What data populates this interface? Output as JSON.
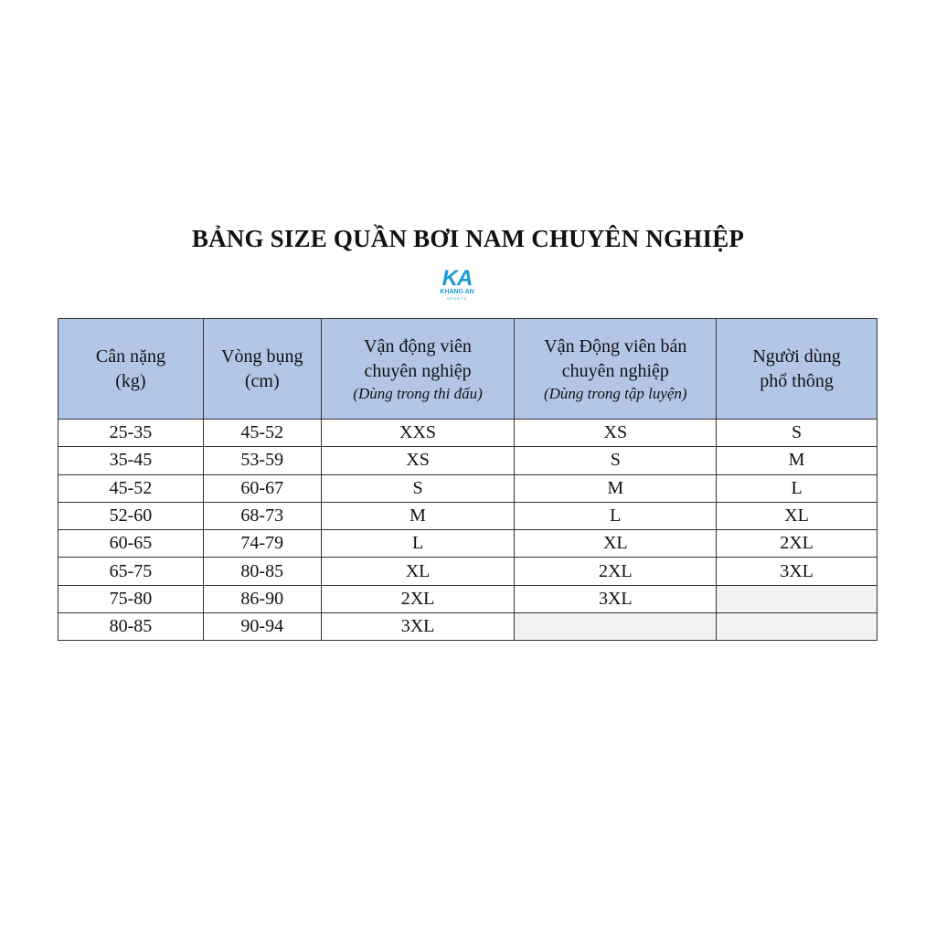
{
  "title": "BẢNG SIZE QUẦN BƠI NAM CHUYÊN NGHIỆP",
  "logo": {
    "mark": "KA",
    "name": "KHANG AN",
    "tagline": "SPORTS",
    "color": "#1b9ad6"
  },
  "table": {
    "headers": [
      {
        "line1": "Cân nặng",
        "line2": "(kg)",
        "sub": ""
      },
      {
        "line1": "Vòng bụng",
        "line2": "(cm)",
        "sub": ""
      },
      {
        "line1": "Vận động viên",
        "line2": "chuyên nghiệp",
        "sub": "(Dùng trong thi đấu)"
      },
      {
        "line1": "Vận Động viên bán",
        "line2": "chuyên nghiệp",
        "sub": "(Dùng trong tập luyện)"
      },
      {
        "line1": "Người dùng",
        "line2": "phổ thông",
        "sub": ""
      }
    ],
    "rows": [
      [
        "25-35",
        "45-52",
        "XXS",
        "XS",
        "S"
      ],
      [
        "35-45",
        "53-59",
        "XS",
        "S",
        "M"
      ],
      [
        "45-52",
        "60-67",
        "S",
        "M",
        "L"
      ],
      [
        "52-60",
        "68-73",
        "M",
        "L",
        "XL"
      ],
      [
        "60-65",
        "74-79",
        "L",
        "XL",
        "2XL"
      ],
      [
        "65-75",
        "80-85",
        "XL",
        "2XL",
        "3XL"
      ],
      [
        "75-80",
        "86-90",
        "2XL",
        "3XL",
        ""
      ],
      [
        "80-85",
        "90-94",
        "3XL",
        "",
        ""
      ]
    ],
    "header_bg": "#b4c6e7",
    "empty_bg": "#f2f2f2"
  }
}
